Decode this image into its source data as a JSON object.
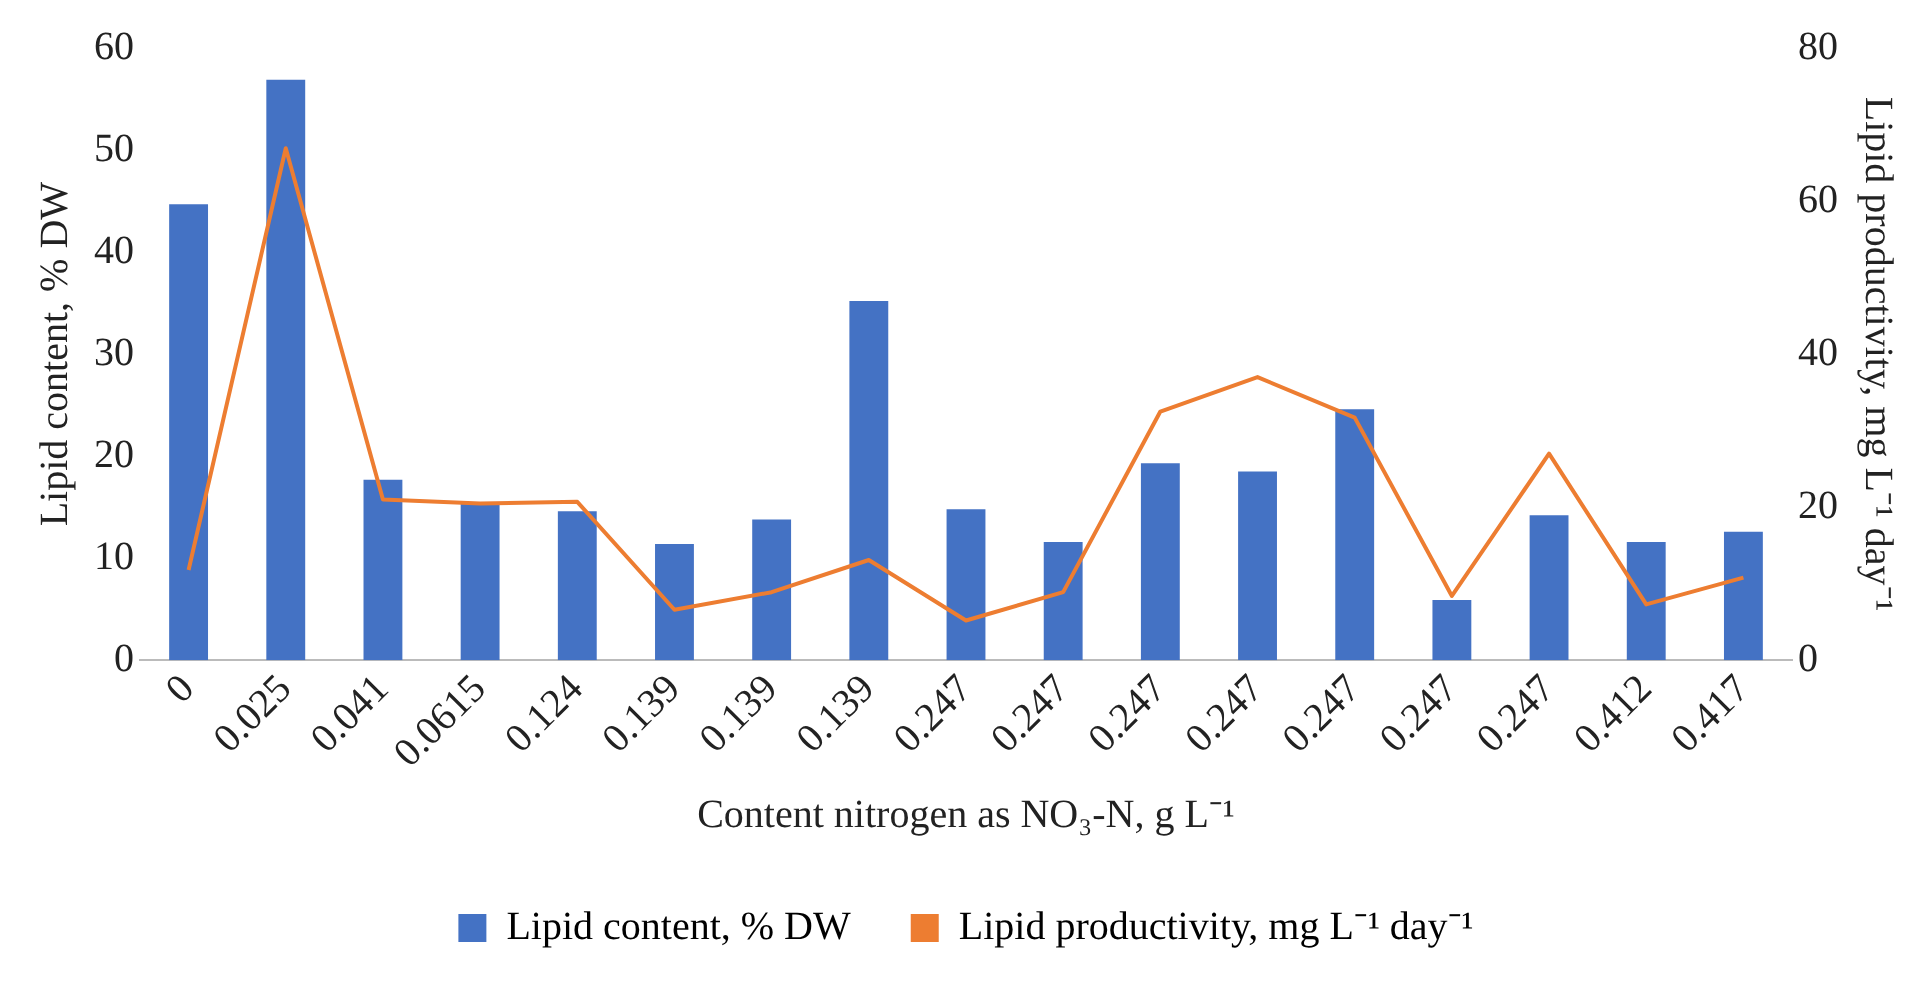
{
  "chart_data": {
    "type": "bar",
    "xlabel": "Content nitrogen as NO₃-N, g L⁻¹",
    "ylabel": "Lipid content, % DW",
    "y2label": "Lipid productivity, mg L⁻¹ day⁻¹",
    "categories": [
      "0",
      "0.025",
      "0.041",
      "0.0615",
      "0.124",
      "0.139",
      "0.139",
      "0.139",
      "0.247",
      "0.247",
      "0.247",
      "0.247",
      "0.247",
      "0.247",
      "0.247",
      "0.412",
      "0.417"
    ],
    "series": [
      {
        "name": "Lipid content, % DW",
        "color": "#4472c4",
        "values": [
          44.7,
          56.9,
          17.7,
          15.4,
          14.6,
          11.4,
          13.8,
          35.2,
          14.8,
          11.6,
          19.3,
          18.5,
          24.6,
          5.9,
          14.2,
          11.6,
          12.6
        ]
      },
      {
        "name": "Lipid productivity, mg L⁻¹ day⁻¹",
        "type": "line",
        "axis": "y2",
        "color": "#ed7d31",
        "values": [
          11.8,
          66.9,
          21,
          20.5,
          20.7,
          6.6,
          8.9,
          13.1,
          5.2,
          8.9,
          32.5,
          37,
          31.7,
          8.4,
          27,
          7.3,
          10.8
        ]
      }
    ],
    "ylim": [
      0,
      60
    ],
    "yticks": [
      0,
      10,
      20,
      30,
      40,
      50,
      60
    ],
    "y2lim": [
      0,
      80
    ],
    "y2ticks": [
      0,
      20,
      40,
      60,
      80
    ],
    "grid": false,
    "legend": "bottom",
    "marker": "none",
    "line_style": "solid"
  }
}
